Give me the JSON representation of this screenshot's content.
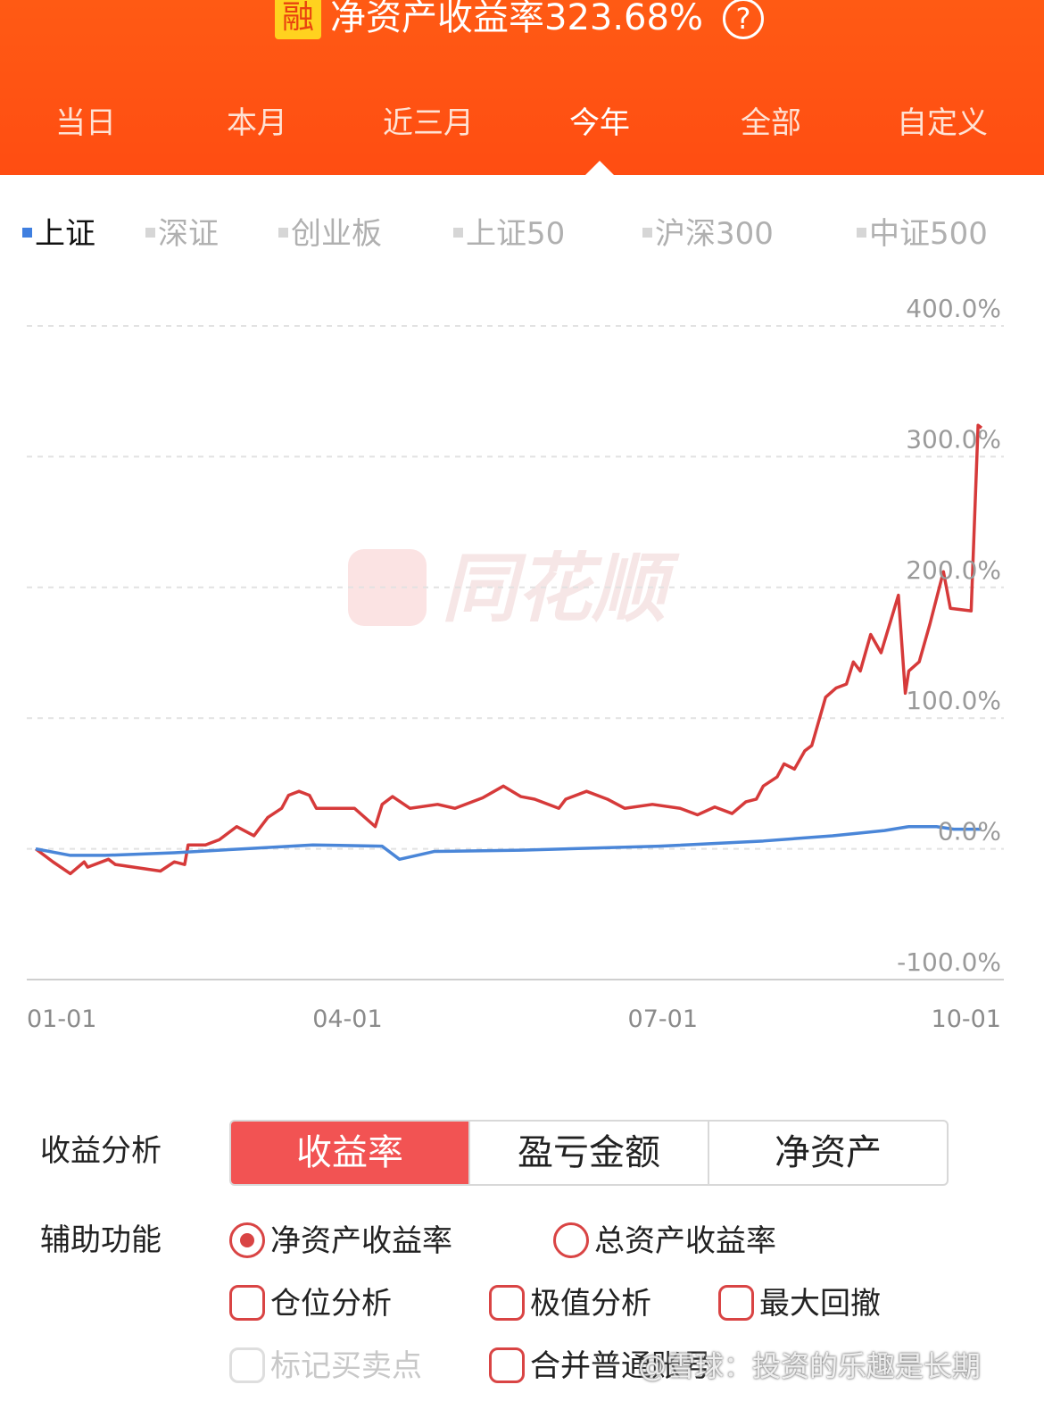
{
  "header": {
    "badge": "融",
    "title": "净资产收益率323.68%",
    "help": "?"
  },
  "tabs": [
    "当日",
    "本月",
    "近三月",
    "今年",
    "全部",
    "自定义"
  ],
  "active_tab": 3,
  "indices": [
    "上证",
    "深证",
    "创业板",
    "上证50",
    "沪深300",
    "中证500"
  ],
  "active_index": 0,
  "chart_data": {
    "type": "line",
    "watermark": "同花顺",
    "xlim": [
      0,
      273
    ],
    "xticks": [
      {
        "value": 0,
        "label": "01-01"
      },
      {
        "value": 90,
        "label": "04-01"
      },
      {
        "value": 181,
        "label": "07-01"
      },
      {
        "value": 273,
        "label": "10-01"
      }
    ],
    "ylim": [
      -100,
      400
    ],
    "yticks": [
      {
        "value": 400,
        "label": "400.0%"
      },
      {
        "value": 300,
        "label": "300.0%"
      },
      {
        "value": 200,
        "label": "200.0%"
      },
      {
        "value": 100,
        "label": "100.0%"
      },
      {
        "value": 0,
        "label": "0.0%"
      },
      {
        "value": -100,
        "label": "-100.0%"
      }
    ],
    "grid": true,
    "series": [
      {
        "name": "净资产收益率",
        "color": "#d63a3a",
        "x": [
          0,
          5,
          10,
          14,
          15,
          21,
          23,
          36,
          40,
          43,
          44,
          49,
          53,
          58,
          63,
          67,
          71,
          73,
          76,
          79,
          81,
          86,
          92,
          95,
          98,
          100,
          103,
          108,
          116,
          121,
          129,
          135,
          140,
          144,
          151,
          153,
          159,
          165,
          170,
          178,
          186,
          191,
          196,
          201,
          205,
          208,
          210,
          214,
          216,
          219,
          222,
          224,
          228,
          231,
          234,
          236,
          238,
          241,
          244,
          249,
          251,
          252,
          255,
          258,
          262,
          264,
          270,
          272,
          273
        ],
        "values": [
          0,
          -10,
          -19,
          -10,
          -14,
          -8,
          -12,
          -17,
          -10,
          -12,
          3,
          3,
          7,
          17,
          10,
          24,
          31,
          41,
          44,
          41,
          31,
          31,
          31,
          24,
          17,
          34,
          40,
          31,
          34,
          31,
          39,
          48,
          40,
          38,
          31,
          38,
          44,
          38,
          31,
          34,
          31,
          26,
          32,
          27,
          36,
          38,
          48,
          55,
          65,
          61,
          75,
          79,
          116,
          123,
          126,
          143,
          136,
          164,
          150,
          194,
          119,
          136,
          143,
          171,
          212,
          184,
          182,
          324,
          322
        ]
      },
      {
        "name": "上证",
        "color": "#4a86d8",
        "x": [
          0,
          10,
          20,
          40,
          60,
          80,
          100,
          105,
          115,
          140,
          180,
          210,
          230,
          245,
          252,
          260,
          265,
          273
        ],
        "values": [
          0,
          -5,
          -5,
          -3,
          0,
          3,
          2,
          -8,
          -2,
          -1,
          2,
          6,
          10,
          14,
          17,
          17,
          15,
          15
        ]
      }
    ]
  },
  "analysis": {
    "label": "收益分析",
    "options": [
      "收益率",
      "盈亏金额",
      "净资产"
    ],
    "active": 0
  },
  "aux": {
    "label": "辅助功能",
    "radios": [
      {
        "text": "净资产收益率",
        "checked": true
      },
      {
        "text": "总资产收益率",
        "checked": false
      }
    ],
    "checks": [
      {
        "text": "仓位分析",
        "enabled": true
      },
      {
        "text": "极值分析",
        "enabled": true
      },
      {
        "text": "最大回撤",
        "enabled": true
      },
      {
        "text": "标记买卖点",
        "enabled": false
      },
      {
        "text": "合并普通账号",
        "enabled": true
      }
    ]
  },
  "watermark": "@雪球：投资的乐趣是长期"
}
